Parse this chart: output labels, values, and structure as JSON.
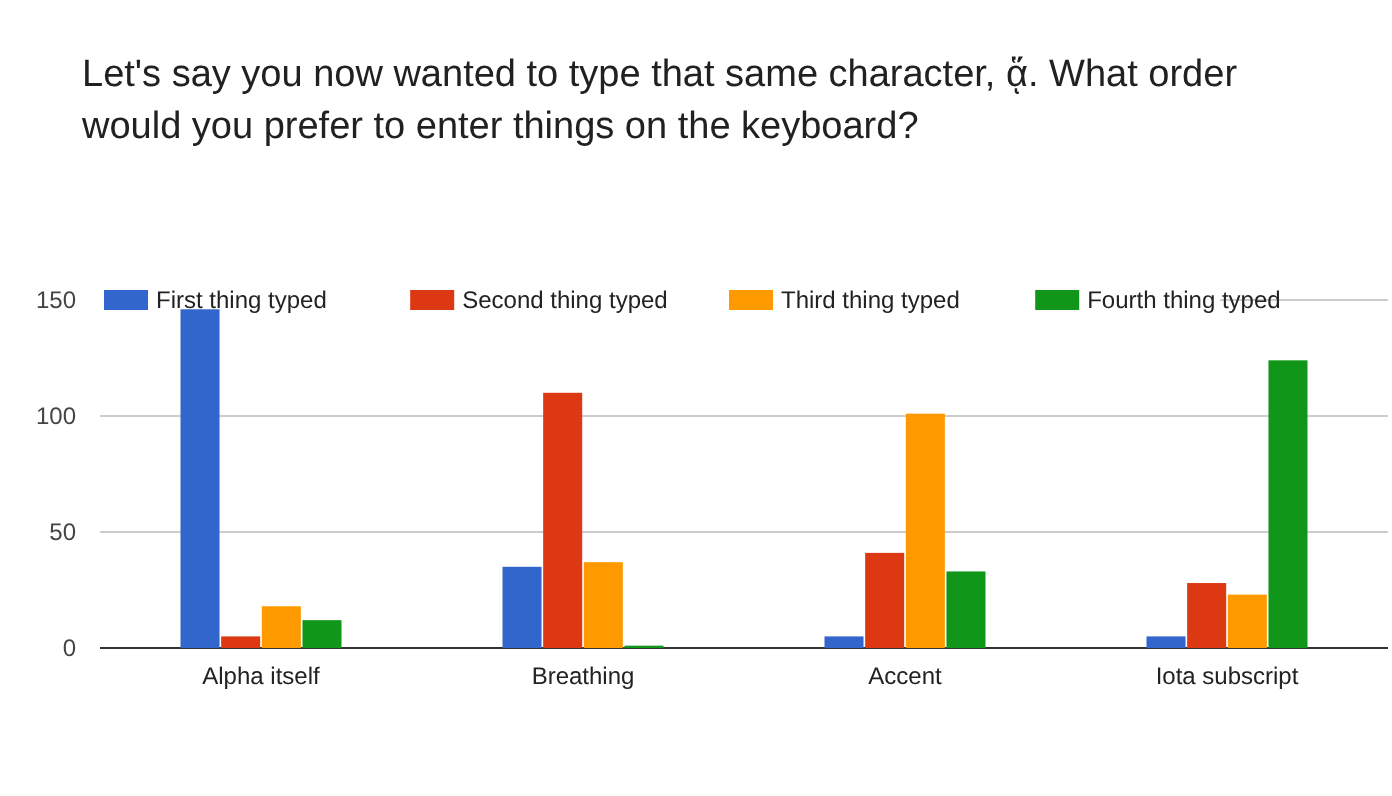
{
  "chart_data": {
    "type": "bar",
    "title": "Let's say you now wanted to type that same character, ᾅ. What order would you prefer to enter things on the keyboard?",
    "categories": [
      "Alpha itself",
      "Breathing",
      "Accent",
      "Iota subscript"
    ],
    "series": [
      {
        "name": "First thing typed",
        "color": "#3366cc",
        "values": [
          146,
          35,
          5,
          5
        ]
      },
      {
        "name": "Second thing typed",
        "color": "#dc3912",
        "values": [
          5,
          110,
          41,
          28
        ]
      },
      {
        "name": "Third thing typed",
        "color": "#ff9900",
        "values": [
          18,
          37,
          101,
          23
        ]
      },
      {
        "name": "Fourth thing typed",
        "color": "#109618",
        "values": [
          12,
          1,
          33,
          124
        ]
      }
    ],
    "ylim": [
      0,
      150
    ],
    "yticks": [
      0,
      50,
      100,
      150
    ],
    "grid": "y",
    "legend": "top"
  }
}
